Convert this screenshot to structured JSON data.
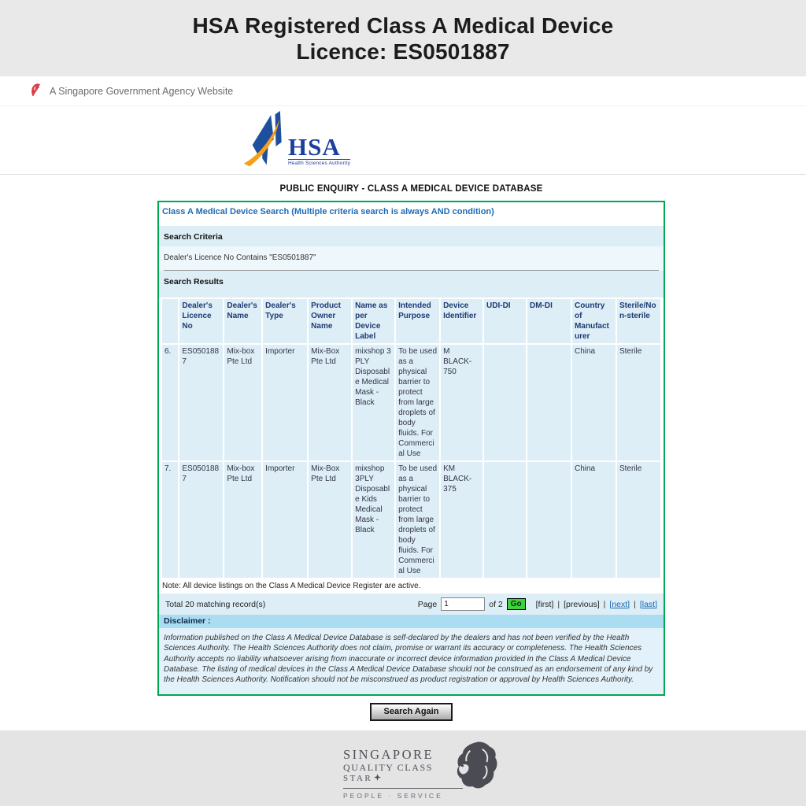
{
  "banner": {
    "title_line1": "HSA Registered Class A Medical Device",
    "title_line2": "Licence: ES0501887"
  },
  "gov_banner": {
    "text": "A Singapore Government Agency Website"
  },
  "hsa_logo": {
    "acronym": "HSA",
    "subtitle": "Health Sciences Authority"
  },
  "page_heading": "PUBLIC ENQUIRY - CLASS A MEDICAL DEVICE DATABASE",
  "search_panel": {
    "title": "Class A Medical Device Search (Multiple criteria search is always AND condition)",
    "criteria_heading": "Search Criteria",
    "criteria_text": "Dealer's Licence No Contains \"ES0501887\"",
    "results_heading": "Search Results"
  },
  "results_table": {
    "columns": [
      "",
      "Dealer's Licence No",
      "Dealer's Name",
      "Dealer's Type",
      "Product Owner Name",
      "Name as per Device Label",
      "Intended Purpose",
      "Device Identifier",
      "UDI-DI",
      "DM-DI",
      "Country of Manufacturer",
      "Sterile/Non-sterile"
    ],
    "rows": [
      [
        "6.",
        "ES0501887",
        "Mix-box Pte Ltd",
        "Importer",
        "Mix-Box Pte Ltd",
        "mixshop 3 PLY Disposable Medical Mask - Black",
        "To be used as a physical barrier to protect from large droplets of body fluids. For Commercial Use",
        "M BLACK-750",
        "",
        "",
        "China",
        "Sterile"
      ],
      [
        "7.",
        "ES0501887",
        "Mix-box Pte Ltd",
        "Importer",
        "Mix-Box Pte Ltd",
        "mixshop 3PLY Disposable Kids Medical Mask - Black",
        "To be used as a physical barrier to protect from large droplets of body fluids. For Commercial Use",
        "KM BLACK-375",
        "",
        "",
        "China",
        "Sterile"
      ]
    ]
  },
  "note": "Note: All device listings on the Class A Medical Device Register are active.",
  "pagination": {
    "total_text": "Total 20 matching record(s)",
    "page_label": "Page",
    "page_value": "1",
    "of_text": "of 2",
    "go_label": "Go",
    "separator": "|",
    "links": [
      {
        "label": "[first]",
        "is_link": false
      },
      {
        "label": "[previous]",
        "is_link": false
      },
      {
        "label": "[next]",
        "is_link": true
      },
      {
        "label": "[last]",
        "is_link": true
      }
    ]
  },
  "disclaimer": {
    "heading": "Disclaimer :",
    "text": "Information published on the Class A Medical Device Database is self-declared by the dealers and has not been verified by the Health Sciences Authority. The Health Sciences Authority does not claim, promise or warrant its accuracy or completeness. The Health Sciences Authority accepts no liability whatsoever arising from inaccurate or incorrect device information provided in the Class A Medical Device Database. The listing of medical devices in the Class A Medical Device Database should not be construed as an endorsement of any kind by the Health Sciences Authority. Notification should not be misconstrued as product registration or approval by Health Sciences Authority."
  },
  "search_again_label": "Search Again",
  "footer": {
    "line1": "SINGAPORE",
    "line2": "QUALITY CLASS",
    "line3": "STAR",
    "tagline": "PEOPLE · SERVICE"
  },
  "colors": {
    "accent_green": "#00a651",
    "panel_blue": "#ddeef7",
    "panel_blue_light": "#eef7fc",
    "table_header_navy": "#1f3a72",
    "panel_title_blue": "#1e6cb5",
    "link_blue": "#1767b3",
    "disclaimer_strip_blue": "#aadcf2",
    "go_button_green": "#3fd23f",
    "merlion_red": "#e03a45",
    "hsa_blue": "#1d4f9e",
    "hsa_orange": "#f6a01a"
  }
}
